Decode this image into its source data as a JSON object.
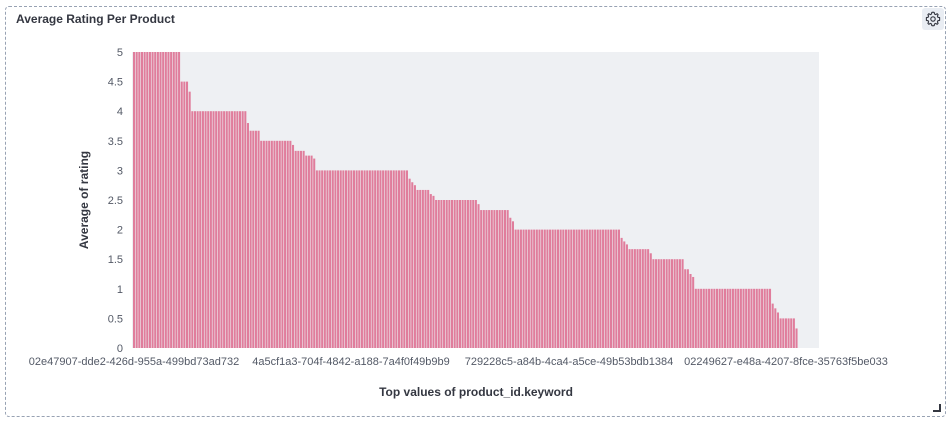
{
  "panel": {
    "title": "Average Rating Per Product",
    "settings_icon": "gear-icon",
    "resize_icon": "resize-handle-icon"
  },
  "chart_data": {
    "type": "bar",
    "xlabel": "Top values of product_id.keyword",
    "ylabel": "Average of rating",
    "ylim": [
      0,
      5
    ],
    "yticks": [
      0,
      0.5,
      1,
      1.5,
      2,
      2.5,
      3,
      3.5,
      4,
      4.5,
      5
    ],
    "grid": false,
    "bar_color": "#e07d9c",
    "bar_stroke": "#c84a73",
    "plot_background": "#eef0f3",
    "xtick_labels": [
      "02e47907-dde2-426d-955a-499bd73ad732",
      "4a5cf1a3-704f-4842-a188-7a4f0f49b9b9",
      "729228c5-a84b-4ca4-a5ce-49b53bdb1384",
      "02249627-e48a-4207-8fce-35763f5be033"
    ],
    "values": [
      5,
      5,
      5,
      5,
      5,
      5,
      5,
      5,
      5,
      5,
      5,
      5,
      5,
      5,
      5,
      5,
      5,
      5,
      4.5,
      4.5,
      4.5,
      4.33,
      4,
      4,
      4,
      4,
      4,
      4,
      4,
      4,
      4,
      4,
      4,
      4,
      4,
      4,
      4,
      4,
      4,
      4,
      4,
      4,
      4,
      3.8,
      3.67,
      3.67,
      3.67,
      3.67,
      3.5,
      3.5,
      3.5,
      3.5,
      3.5,
      3.5,
      3.5,
      3.5,
      3.5,
      3.5,
      3.5,
      3.5,
      3.43,
      3.33,
      3.33,
      3.33,
      3.33,
      3.25,
      3.25,
      3.25,
      3.2,
      3,
      3,
      3,
      3,
      3,
      3,
      3,
      3,
      3,
      3,
      3,
      3,
      3,
      3,
      3,
      3,
      3,
      3,
      3,
      3,
      3,
      3,
      3,
      3,
      3,
      3,
      3,
      3,
      3,
      3,
      3,
      3,
      3,
      3,
      3,
      2.86,
      2.8,
      2.75,
      2.67,
      2.67,
      2.67,
      2.67,
      2.67,
      2.6,
      2.57,
      2.5,
      2.5,
      2.5,
      2.5,
      2.5,
      2.5,
      2.5,
      2.5,
      2.5,
      2.5,
      2.5,
      2.5,
      2.5,
      2.5,
      2.5,
      2.5,
      2.43,
      2.33,
      2.33,
      2.33,
      2.33,
      2.33,
      2.33,
      2.33,
      2.33,
      2.33,
      2.33,
      2.33,
      2.2,
      2.14,
      2,
      2,
      2,
      2,
      2,
      2,
      2,
      2,
      2,
      2,
      2,
      2,
      2,
      2,
      2,
      2,
      2,
      2,
      2,
      2,
      2,
      2,
      2,
      2,
      2,
      2,
      2,
      2,
      2,
      2,
      2,
      2,
      2,
      2,
      2,
      2,
      2,
      2,
      2,
      2,
      1.86,
      1.8,
      1.75,
      1.67,
      1.67,
      1.67,
      1.67,
      1.67,
      1.67,
      1.67,
      1.67,
      1.6,
      1.5,
      1.5,
      1.5,
      1.5,
      1.5,
      1.5,
      1.5,
      1.5,
      1.5,
      1.5,
      1.5,
      1.5,
      1.33,
      1.33,
      1.25,
      1.2,
      1,
      1,
      1,
      1,
      1,
      1,
      1,
      1,
      1,
      1,
      1,
      1,
      1,
      1,
      1,
      1,
      1,
      1,
      1,
      1,
      1,
      1,
      1,
      1,
      1,
      1,
      1,
      1,
      1,
      0.75,
      0.67,
      0.6,
      0.5,
      0.5,
      0.5,
      0.5,
      0.5,
      0.5,
      0.33
    ]
  }
}
